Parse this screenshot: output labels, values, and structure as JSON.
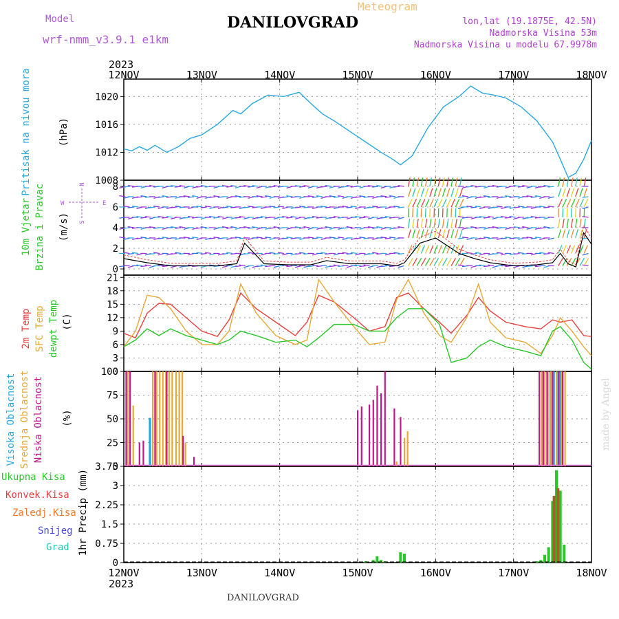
{
  "title": "DANILOVGRAD",
  "subtitle": "Meteogram",
  "model": {
    "label": "Model",
    "name": "wrf-nmm_v3.9.1  e1km"
  },
  "location": {
    "lonlat": "lon,lat (19.1875E, 42.5N)",
    "elevation": "Nadmorska Visina 53m",
    "model_elevation": "Nadmorska Visina u modelu 67.9978m"
  },
  "footer": "DANILOVGRAD",
  "credit": "made by Angel",
  "time_axis": {
    "year": "2023",
    "ticks": [
      "12NOV",
      "13NOV",
      "14NOV",
      "15NOV",
      "16NOV",
      "17NOV",
      "18NOV"
    ]
  },
  "colors": {
    "pressure": "#29a8e0",
    "temp2m": "#e8403c",
    "sfc_temp": "#e8a838",
    "dewpt": "#28c828",
    "high_cloud": "#29a8e0",
    "mid_cloud": "#e8a838",
    "low_cloud": "#c0188c",
    "wind_label": "#28c828",
    "precip_total": "#28c828",
    "precip_conv": "#e8403c",
    "precip_frozen": "#f07828",
    "precip_snow": "#4848e0",
    "precip_hail": "#28c8b0"
  },
  "chart_data": [
    {
      "type": "line",
      "panel": "pressure",
      "ylabel_lines": [
        "Pritisak na nivou mora"
      ],
      "unit": "(hPa)",
      "ylim": [
        1008,
        1022.5
      ],
      "yticks": [
        1008,
        1012,
        1016,
        1020
      ],
      "x_days": [
        0,
        0.1,
        0.2,
        0.3,
        0.4,
        0.55,
        0.7,
        0.85,
        1.0,
        1.2,
        1.4,
        1.5,
        1.65,
        1.85,
        2.05,
        2.25,
        2.4,
        2.55,
        2.7,
        2.9,
        3.1,
        3.3,
        3.45,
        3.55,
        3.7,
        3.9,
        4.1,
        4.3,
        4.45,
        4.6,
        4.75,
        4.9,
        5.1,
        5.3,
        5.5,
        5.6,
        5.7,
        5.8,
        5.9,
        6.0
      ],
      "series": [
        {
          "values": [
            1012.5,
            1012.2,
            1012.8,
            1012.3,
            1013.0,
            1012.0,
            1012.8,
            1014.0,
            1014.5,
            1016.0,
            1018.0,
            1017.5,
            1019.0,
            1020.2,
            1020.0,
            1020.6,
            1019.0,
            1017.5,
            1016.5,
            1015.0,
            1013.5,
            1012.0,
            1011.0,
            1010.2,
            1011.5,
            1015.5,
            1018.5,
            1020.0,
            1021.5,
            1020.5,
            1020.2,
            1019.8,
            1018.5,
            1016.5,
            1013.5,
            1011.0,
            1008.4,
            1009.0,
            1011.0,
            1013.7
          ]
        }
      ]
    },
    {
      "type": "line",
      "panel": "wind",
      "ylabel_lines": [
        "10m Vjetar",
        "Brzina i Pravac"
      ],
      "unit": "(m/s)",
      "compass": {
        "n": "N",
        "s": "S",
        "w": "W",
        "e": "E"
      },
      "ylim": [
        -0.6,
        8.6
      ],
      "yticks": [
        0,
        2,
        4,
        6,
        8
      ],
      "x_days": [
        0,
        0.3,
        0.6,
        0.9,
        1.2,
        1.45,
        1.55,
        1.8,
        2.1,
        2.4,
        2.6,
        2.9,
        3.3,
        3.5,
        3.6,
        3.8,
        4.0,
        4.3,
        4.5,
        4.7,
        5.0,
        5.3,
        5.5,
        5.6,
        5.7,
        5.8,
        5.9,
        6.0
      ],
      "series": [
        {
          "name": "wind speed",
          "values": [
            1.0,
            0.6,
            0.3,
            0.3,
            0.3,
            0.5,
            2.5,
            0.5,
            0.4,
            0.4,
            0.8,
            0.5,
            0.5,
            0.3,
            0.6,
            2.5,
            3.0,
            1.5,
            1.0,
            0.6,
            0.3,
            0.4,
            0.6,
            1.5,
            0.5,
            0.2,
            3.5,
            2.4
          ]
        }
      ]
    },
    {
      "type": "line",
      "panel": "temperature",
      "ylabel_lines": [
        "2m Temp",
        "SFC Temp",
        "dewpt Temp"
      ],
      "unit": "(C)",
      "ylim": [
        0,
        21.5
      ],
      "yticks": [
        0,
        3,
        6,
        9,
        12,
        15,
        18,
        21
      ],
      "x_days": [
        0,
        0.15,
        0.3,
        0.45,
        0.6,
        0.8,
        1.0,
        1.2,
        1.35,
        1.5,
        1.7,
        1.95,
        2.2,
        2.35,
        2.5,
        2.7,
        2.95,
        3.15,
        3.35,
        3.5,
        3.65,
        3.85,
        4.05,
        4.2,
        4.4,
        4.55,
        4.7,
        4.9,
        5.15,
        5.35,
        5.5,
        5.6,
        5.75,
        5.9,
        6.0
      ],
      "series": [
        {
          "name": "2m Temp",
          "values": [
            8.5,
            7.5,
            13.0,
            15.2,
            15.0,
            12.0,
            9.0,
            7.8,
            11.5,
            17.5,
            14.0,
            11.0,
            8.0,
            11.0,
            17.0,
            15.5,
            12.0,
            9.0,
            10.0,
            16.5,
            17.5,
            14.0,
            11.0,
            8.5,
            12.5,
            16.5,
            13.5,
            11.0,
            10.0,
            9.5,
            11.5,
            11.0,
            11.5,
            8.0,
            7.8
          ]
        },
        {
          "name": "SFC Temp",
          "values": [
            5.5,
            9.0,
            17.0,
            16.5,
            14.0,
            9.0,
            6.0,
            6.0,
            9.0,
            19.5,
            13.0,
            8.0,
            6.0,
            7.0,
            20.5,
            15.5,
            10.0,
            6.0,
            6.5,
            16.0,
            20.5,
            13.0,
            8.0,
            6.5,
            12.0,
            19.5,
            11.0,
            7.5,
            6.5,
            4.0,
            8.0,
            12.0,
            9.0,
            5.5,
            3.5
          ]
        },
        {
          "name": "dewpt Temp",
          "values": [
            5.5,
            7.0,
            9.5,
            8.0,
            9.5,
            8.0,
            7.0,
            6.0,
            7.0,
            9.0,
            8.0,
            6.5,
            7.0,
            5.5,
            7.5,
            10.5,
            10.5,
            9.0,
            9.0,
            12.0,
            14.0,
            14.0,
            10.5,
            2.0,
            3.0,
            5.5,
            7.0,
            5.5,
            4.5,
            3.5,
            9.0,
            10.0,
            7.0,
            2.0,
            0.5
          ]
        }
      ]
    },
    {
      "type": "bar",
      "panel": "cloud",
      "ylabel_lines": [
        "Visoka Oblacnost",
        "Srednja Oblacnost",
        "Niska Oblacnost"
      ],
      "unit": "(%)",
      "ylim": [
        0,
        100
      ],
      "yticks": [
        0,
        25,
        50,
        75,
        100
      ],
      "series": [
        {
          "name": "Visoka Oblacnost",
          "x": [
            0.33,
            0.34,
            5.47,
            5.52,
            5.57,
            5.6
          ],
          "values": [
            51,
            51,
            100,
            100,
            100,
            100
          ]
        },
        {
          "name": "Srednja Oblacnost",
          "x": [
            0.05,
            0.12,
            0.37,
            0.42,
            0.46,
            0.5,
            0.54,
            0.58,
            0.62,
            0.67,
            0.71,
            0.75,
            0.79,
            3.5,
            3.6,
            3.64,
            5.36,
            5.4,
            5.44,
            5.48,
            5.55,
            5.62,
            5.66
          ],
          "values": [
            100,
            64,
            100,
            100,
            100,
            100,
            100,
            100,
            100,
            100,
            100,
            100,
            25,
            5,
            30,
            37,
            100,
            100,
            100,
            100,
            100,
            100,
            100
          ]
        },
        {
          "name": "Niska Oblacnost",
          "x": [
            0.03,
            0.08,
            0.2,
            0.25,
            0.4,
            0.55,
            0.76,
            0.9,
            3.0,
            3.05,
            3.15,
            3.2,
            3.25,
            3.3,
            3.35,
            3.47,
            3.55,
            5.33,
            5.38,
            5.43,
            5.5,
            5.58,
            5.63
          ],
          "values": [
            100,
            100,
            25,
            27,
            100,
            100,
            32,
            10,
            59,
            63,
            65,
            70,
            85,
            77,
            100,
            61,
            52,
            100,
            100,
            100,
            100,
            100,
            100
          ]
        }
      ]
    },
    {
      "type": "bar",
      "panel": "precip",
      "ylabel_lines": [
        "1hr Precip (mm)"
      ],
      "legend": [
        "Ukupna Kisa",
        "Konvek.Kisa",
        "Zaledj.Kisa",
        "Snijeg",
        "Grad"
      ],
      "ylim": [
        0,
        3.75
      ],
      "yticks": [
        0,
        0.75,
        1.5,
        2.25,
        3,
        3.75
      ],
      "ytick_labels": [
        "0",
        "0.75",
        "1.5",
        "2.25",
        "3",
        "3.75"
      ],
      "series": [
        {
          "name": "Ukupna Kisa",
          "x": [
            3.1,
            3.2,
            3.25,
            3.3,
            3.35,
            3.55,
            3.6,
            5.3,
            5.35,
            5.4,
            5.45,
            5.5,
            5.55,
            5.6,
            5.65
          ],
          "values": [
            0.05,
            0.1,
            0.25,
            0.1,
            0.05,
            0.4,
            0.35,
            0.05,
            0.1,
            0.3,
            0.6,
            2.4,
            3.6,
            2.8,
            0.7
          ]
        },
        {
          "name": "Konvek.Kisa",
          "x": [
            5.52,
            5.57
          ],
          "values": [
            2.6,
            2.9
          ]
        }
      ]
    }
  ]
}
